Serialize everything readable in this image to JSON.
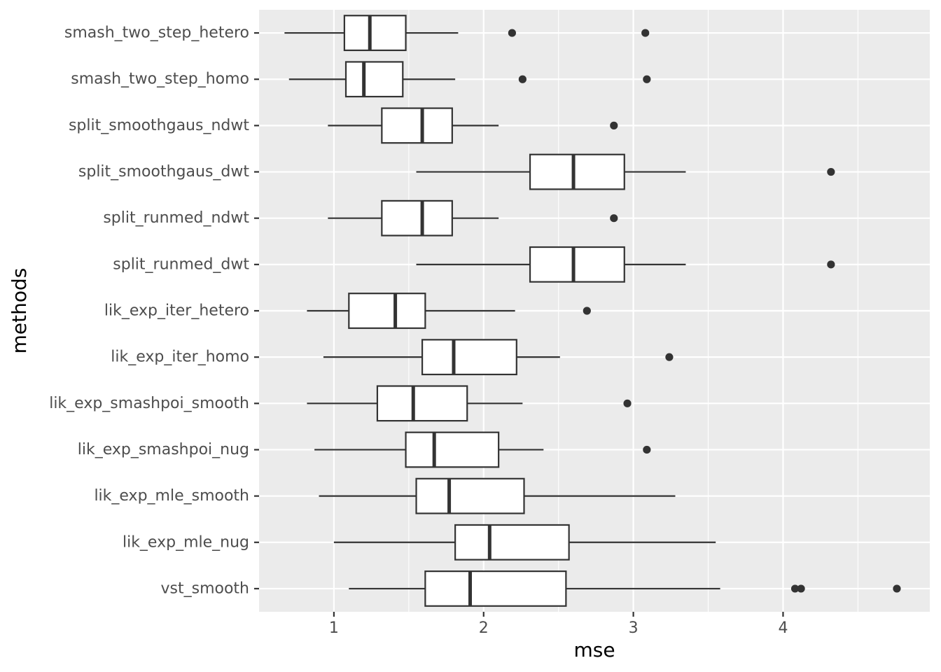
{
  "chart_data": {
    "type": "boxplot",
    "orientation": "horizontal",
    "xlabel": "mse",
    "ylabel": "methods",
    "xlim": [
      0.5,
      4.98
    ],
    "x_ticks": [
      1,
      2,
      3,
      4
    ],
    "x_tick_labels": [
      "1",
      "2",
      "3",
      "4"
    ],
    "grid": true,
    "colors": {
      "panel": "#EBEBEB",
      "box_fill": "#FFFFFF",
      "line": "#333333",
      "tick_text": "#4D4D4D"
    },
    "categories": [
      "smash_two_step_hetero",
      "smash_two_step_homo",
      "split_smoothgaus_ndwt",
      "split_smoothgaus_dwt",
      "split_runmed_ndwt",
      "split_runmed_dwt",
      "lik_exp_iter_hetero",
      "lik_exp_iter_homo",
      "lik_exp_smashpoi_smooth",
      "lik_exp_smashpoi_nug",
      "lik_exp_mle_smooth",
      "lik_exp_mle_nug",
      "vst_smooth"
    ],
    "boxes": [
      {
        "label": "smash_two_step_hetero",
        "min": 0.67,
        "q1": 1.07,
        "median": 1.24,
        "q3": 1.48,
        "max": 1.83,
        "outliers": [
          2.19,
          3.08
        ]
      },
      {
        "label": "smash_two_step_homo",
        "min": 0.7,
        "q1": 1.08,
        "median": 1.2,
        "q3": 1.46,
        "max": 1.81,
        "outliers": [
          2.26,
          3.09
        ]
      },
      {
        "label": "split_smoothgaus_ndwt",
        "min": 0.96,
        "q1": 1.32,
        "median": 1.59,
        "q3": 1.79,
        "max": 2.1,
        "outliers": [
          2.87
        ]
      },
      {
        "label": "split_smoothgaus_dwt",
        "min": 1.55,
        "q1": 2.31,
        "median": 2.6,
        "q3": 2.94,
        "max": 3.35,
        "outliers": [
          4.32
        ]
      },
      {
        "label": "split_runmed_ndwt",
        "min": 0.96,
        "q1": 1.32,
        "median": 1.59,
        "q3": 1.79,
        "max": 2.1,
        "outliers": [
          2.87
        ]
      },
      {
        "label": "split_runmed_dwt",
        "min": 1.55,
        "q1": 2.31,
        "median": 2.6,
        "q3": 2.94,
        "max": 3.35,
        "outliers": [
          4.32
        ]
      },
      {
        "label": "lik_exp_iter_hetero",
        "min": 0.82,
        "q1": 1.1,
        "median": 1.41,
        "q3": 1.61,
        "max": 2.21,
        "outliers": [
          2.69
        ]
      },
      {
        "label": "lik_exp_iter_homo",
        "min": 0.93,
        "q1": 1.59,
        "median": 1.8,
        "q3": 2.22,
        "max": 2.51,
        "outliers": [
          3.24
        ]
      },
      {
        "label": "lik_exp_smashpoi_smooth",
        "min": 0.82,
        "q1": 1.29,
        "median": 1.53,
        "q3": 1.89,
        "max": 2.26,
        "outliers": [
          2.96
        ]
      },
      {
        "label": "lik_exp_smashpoi_nug",
        "min": 0.87,
        "q1": 1.48,
        "median": 1.67,
        "q3": 2.1,
        "max": 2.4,
        "outliers": [
          3.09
        ]
      },
      {
        "label": "lik_exp_mle_smooth",
        "min": 0.9,
        "q1": 1.55,
        "median": 1.77,
        "q3": 2.27,
        "max": 3.28,
        "outliers": []
      },
      {
        "label": "lik_exp_mle_nug",
        "min": 1.0,
        "q1": 1.81,
        "median": 2.04,
        "q3": 2.57,
        "max": 3.55,
        "outliers": []
      },
      {
        "label": "vst_smooth",
        "min": 1.1,
        "q1": 1.61,
        "median": 1.91,
        "q3": 2.55,
        "max": 3.58,
        "outliers": [
          4.08,
          4.12,
          4.76
        ]
      }
    ]
  }
}
